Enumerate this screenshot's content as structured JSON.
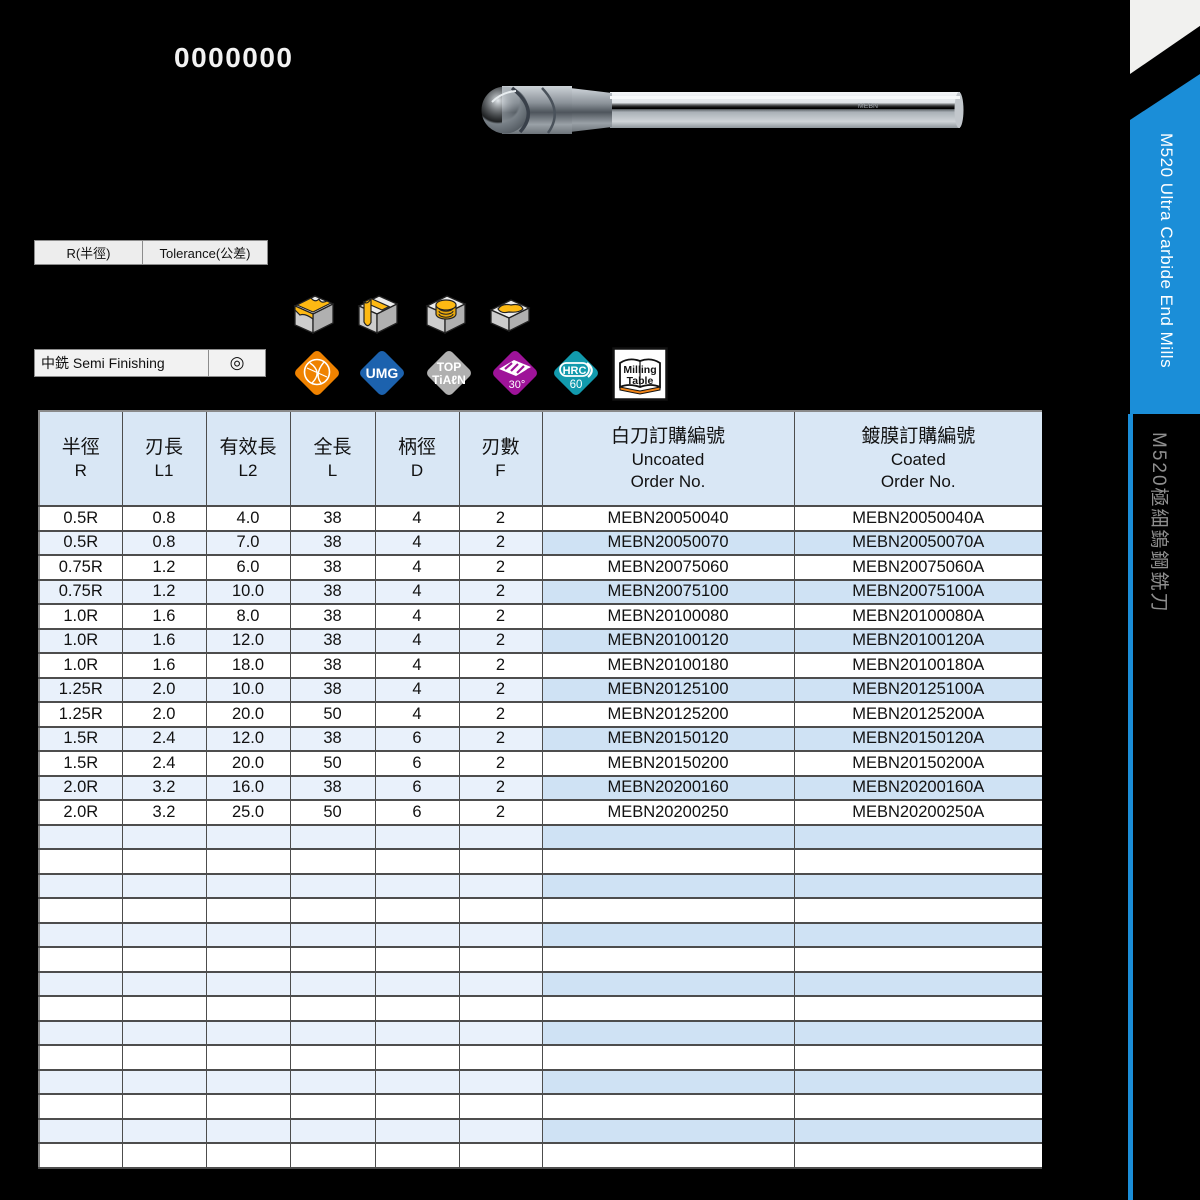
{
  "page": {
    "bg": "#000000",
    "doc_number": "0000000"
  },
  "spec_labels": {
    "radius": "R(半徑)",
    "tolerance": "Tolerance(公差)"
  },
  "finishing": {
    "label": "中銑 Semi Finishing",
    "mark": "◎"
  },
  "machining_icons": [
    {
      "name": "contour-profiling-icon"
    },
    {
      "name": "slotting-icon"
    },
    {
      "name": "helical-boring-icon"
    },
    {
      "name": "pocketing-icon"
    }
  ],
  "badges": {
    "geometry": {
      "color": "#ef8200"
    },
    "umg": {
      "label": "UMG",
      "color": "#1c62ae"
    },
    "coating": {
      "line1": "TOP",
      "line2": "TiAℓN",
      "color": "#b0b0b0"
    },
    "helix": {
      "label": "30°",
      "color": "#9e1399"
    },
    "hardness": {
      "line1": "HRC",
      "line2": "60",
      "color": "#129aad"
    },
    "milling_table": {
      "line1": "Milling",
      "line2": "Table",
      "accent": "#f08418"
    }
  },
  "sidebar": {
    "banner_text": "M520 Ultra Carbide End Mills",
    "banner_color": "#1b8ed8",
    "sub_text": "M520極細鎢鋼銑刀",
    "sub_color": "#8f8f8f"
  },
  "table": {
    "headers": [
      {
        "zh": "半徑",
        "en": "R"
      },
      {
        "zh": "刃長",
        "en": "L1"
      },
      {
        "zh": "有效長",
        "en": "L2"
      },
      {
        "zh": "全長",
        "en": "L"
      },
      {
        "zh": "柄徑",
        "en": "D"
      },
      {
        "zh": "刃數",
        "en": "F"
      },
      {
        "zh": "白刀訂購編號",
        "en": "Uncoated",
        "en2": "Order No."
      },
      {
        "zh": "鍍膜訂購編號",
        "en": "Coated",
        "en2": "Order No."
      }
    ],
    "rows": [
      [
        "0.5R",
        "0.8",
        "4.0",
        "38",
        "4",
        "2",
        "MEBN20050040",
        "MEBN20050040A"
      ],
      [
        "0.5R",
        "0.8",
        "7.0",
        "38",
        "4",
        "2",
        "MEBN20050070",
        "MEBN20050070A"
      ],
      [
        "0.75R",
        "1.2",
        "6.0",
        "38",
        "4",
        "2",
        "MEBN20075060",
        "MEBN20075060A"
      ],
      [
        "0.75R",
        "1.2",
        "10.0",
        "38",
        "4",
        "2",
        "MEBN20075100",
        "MEBN20075100A"
      ],
      [
        "1.0R",
        "1.6",
        "8.0",
        "38",
        "4",
        "2",
        "MEBN20100080",
        "MEBN20100080A"
      ],
      [
        "1.0R",
        "1.6",
        "12.0",
        "38",
        "4",
        "2",
        "MEBN20100120",
        "MEBN20100120A"
      ],
      [
        "1.0R",
        "1.6",
        "18.0",
        "38",
        "4",
        "2",
        "MEBN20100180",
        "MEBN20100180A"
      ],
      [
        "1.25R",
        "2.0",
        "10.0",
        "38",
        "4",
        "2",
        "MEBN20125100",
        "MEBN20125100A"
      ],
      [
        "1.25R",
        "2.0",
        "20.0",
        "50",
        "4",
        "2",
        "MEBN20125200",
        "MEBN20125200A"
      ],
      [
        "1.5R",
        "2.4",
        "12.0",
        "38",
        "6",
        "2",
        "MEBN20150120",
        "MEBN20150120A"
      ],
      [
        "1.5R",
        "2.4",
        "20.0",
        "50",
        "6",
        "2",
        "MEBN20150200",
        "MEBN20150200A"
      ],
      [
        "2.0R",
        "3.2",
        "16.0",
        "38",
        "6",
        "2",
        "MEBN20200160",
        "MEBN20200160A"
      ],
      [
        "2.0R",
        "3.2",
        "25.0",
        "50",
        "6",
        "2",
        "MEBN20200250",
        "MEBN20200250A"
      ]
    ],
    "empty_rows": 14
  }
}
